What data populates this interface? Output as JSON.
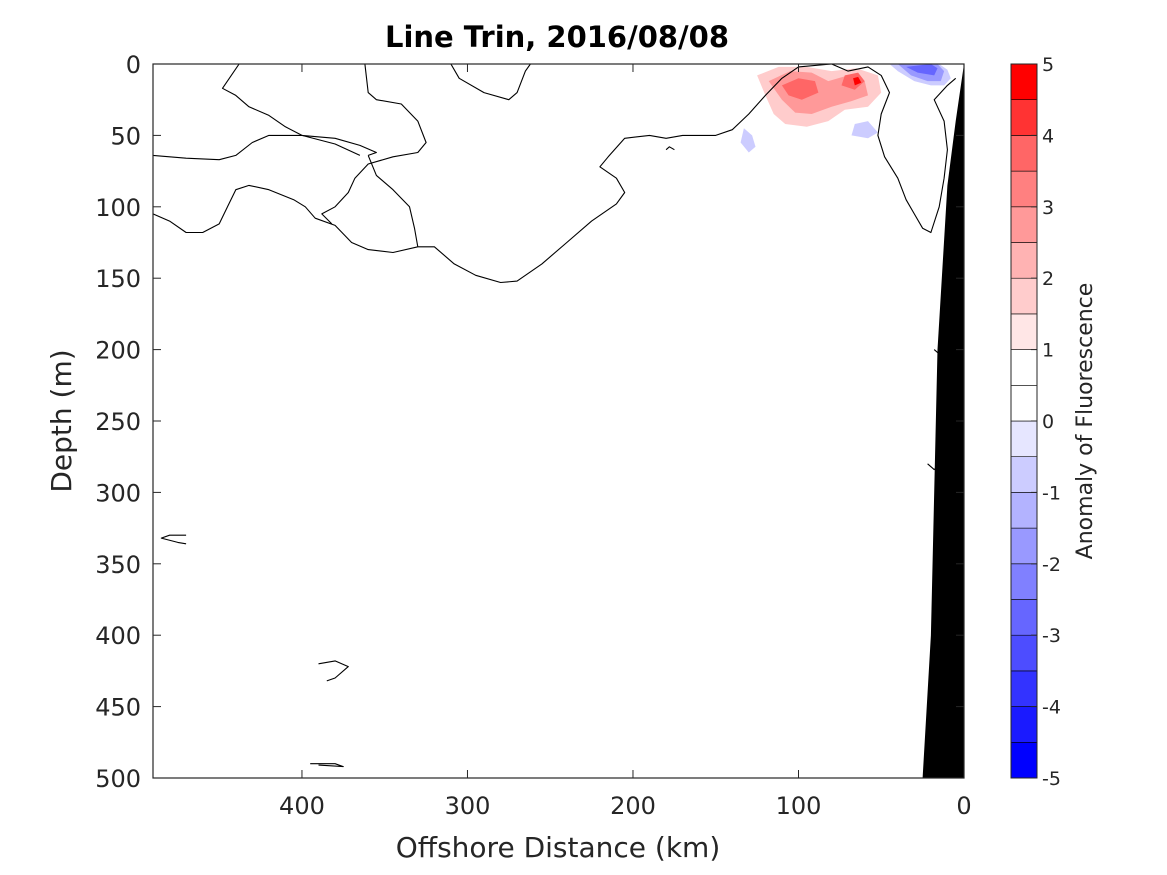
{
  "chart_data": {
    "type": "contour",
    "title": "Line Trin, 2016/08/08",
    "xlabel": "Offshore Distance (km)",
    "ylabel": "Depth (m)",
    "xlim": [
      490,
      0
    ],
    "ylim": [
      500,
      0
    ],
    "x_reversed": true,
    "y_reversed": true,
    "xticks": [
      400,
      300,
      200,
      100,
      0
    ],
    "yticks": [
      0,
      50,
      100,
      150,
      200,
      250,
      300,
      350,
      400,
      450,
      500
    ],
    "grid": false,
    "colorbar": {
      "label": "Anomaly of Fluorescence",
      "range": [
        -5,
        5
      ],
      "ticks": [
        -5,
        -4,
        -3,
        -2,
        -1,
        0,
        1,
        2,
        3,
        4,
        5
      ],
      "levels": [
        {
          "from": -5,
          "to": -4.5,
          "color": "#0000ff"
        },
        {
          "from": -4.5,
          "to": -4,
          "color": "#1a1aff"
        },
        {
          "from": -4,
          "to": -3.5,
          "color": "#3333ff"
        },
        {
          "from": -3.5,
          "to": -3,
          "color": "#4d4dff"
        },
        {
          "from": -3,
          "to": -2.5,
          "color": "#6666ff"
        },
        {
          "from": -2.5,
          "to": -2,
          "color": "#8080ff"
        },
        {
          "from": -2,
          "to": -1.5,
          "color": "#9999ff"
        },
        {
          "from": -1.5,
          "to": -1,
          "color": "#b3b3ff"
        },
        {
          "from": -1,
          "to": -0.5,
          "color": "#ccccff"
        },
        {
          "from": -0.5,
          "to": 0,
          "color": "#e6e6ff"
        },
        {
          "from": 0,
          "to": 0.5,
          "color": "#ffffff"
        },
        {
          "from": 0.5,
          "to": 1,
          "color": "#ffffff"
        },
        {
          "from": 1,
          "to": 1.5,
          "color": "#ffe6e6"
        },
        {
          "from": 1.5,
          "to": 2,
          "color": "#ffcccc"
        },
        {
          "from": 2,
          "to": 2.5,
          "color": "#ffb3b3"
        },
        {
          "from": 2.5,
          "to": 3,
          "color": "#ff9999"
        },
        {
          "from": 3,
          "to": 3.5,
          "color": "#ff8080"
        },
        {
          "from": 3.5,
          "to": 4,
          "color": "#ff6666"
        },
        {
          "from": 4,
          "to": 4.5,
          "color": "#ff3333"
        },
        {
          "from": 4.5,
          "to": 5,
          "color": "#ff0000"
        }
      ]
    },
    "contour_lines": [
      {
        "level": 0,
        "points": [
          [
            490,
            64
          ],
          [
            470,
            66
          ],
          [
            450,
            67
          ],
          [
            440,
            64
          ],
          [
            430,
            55
          ],
          [
            420,
            50
          ],
          [
            400,
            50
          ],
          [
            380,
            52
          ],
          [
            365,
            57
          ],
          [
            355,
            62
          ],
          [
            360,
            64
          ]
        ]
      },
      {
        "level": 0,
        "points": [
          [
            365,
            64
          ],
          [
            380,
            56
          ],
          [
            400,
            50
          ],
          [
            410,
            44
          ],
          [
            420,
            36
          ],
          [
            432,
            30
          ],
          [
            440,
            22
          ],
          [
            448,
            17
          ],
          [
            438,
            0
          ]
        ]
      },
      {
        "level": 0,
        "points": [
          [
            490,
            105
          ],
          [
            480,
            110
          ],
          [
            470,
            118
          ],
          [
            460,
            118
          ],
          [
            450,
            112
          ],
          [
            445,
            100
          ],
          [
            440,
            88
          ],
          [
            432,
            85
          ],
          [
            420,
            88
          ],
          [
            405,
            95
          ],
          [
            398,
            100
          ],
          [
            392,
            108
          ],
          [
            380,
            113
          ],
          [
            370,
            125
          ],
          [
            360,
            130
          ],
          [
            345,
            132
          ],
          [
            330,
            128
          ]
        ]
      },
      {
        "level": 0,
        "points": [
          [
            330,
            128
          ],
          [
            320,
            128
          ],
          [
            308,
            140
          ],
          [
            295,
            148
          ],
          [
            280,
            153
          ],
          [
            270,
            152
          ],
          [
            255,
            140
          ],
          [
            240,
            125
          ],
          [
            225,
            110
          ],
          [
            210,
            98
          ],
          [
            205,
            90
          ],
          [
            210,
            80
          ],
          [
            220,
            72
          ],
          [
            215,
            65
          ],
          [
            205,
            52
          ],
          [
            190,
            50
          ],
          [
            180,
            52
          ],
          [
            170,
            50
          ],
          [
            150,
            50
          ],
          [
            140,
            46
          ],
          [
            130,
            35
          ],
          [
            120,
            22
          ],
          [
            110,
            10
          ],
          [
            100,
            2
          ],
          [
            80,
            0
          ]
        ]
      },
      {
        "level": 0,
        "points": [
          [
            330,
            128
          ],
          [
            332,
            115
          ],
          [
            335,
            100
          ],
          [
            345,
            88
          ],
          [
            355,
            78
          ],
          [
            360,
            64
          ]
        ]
      },
      {
        "level": 0,
        "points": [
          [
            362,
            0
          ],
          [
            360,
            20
          ],
          [
            355,
            25
          ],
          [
            340,
            28
          ],
          [
            330,
            40
          ],
          [
            325,
            55
          ],
          [
            330,
            62
          ],
          [
            345,
            65
          ],
          [
            360,
            70
          ],
          [
            368,
            80
          ],
          [
            372,
            90
          ],
          [
            380,
            100
          ],
          [
            388,
            105
          ],
          [
            382,
            112
          ]
        ]
      },
      {
        "level": 0,
        "points": [
          [
            310,
            0
          ],
          [
            305,
            10
          ],
          [
            290,
            20
          ],
          [
            275,
            25
          ],
          [
            270,
            20
          ],
          [
            265,
            5
          ],
          [
            262,
            0
          ]
        ]
      },
      {
        "level": 0,
        "points": [
          [
            80,
            0
          ],
          [
            70,
            5
          ],
          [
            58,
            2
          ],
          [
            50,
            8
          ],
          [
            45,
            20
          ],
          [
            50,
            35
          ],
          [
            52,
            50
          ],
          [
            48,
            65
          ],
          [
            40,
            80
          ],
          [
            35,
            95
          ],
          [
            30,
            105
          ],
          [
            25,
            115
          ],
          [
            20,
            118
          ],
          [
            15,
            100
          ],
          [
            12,
            80
          ],
          [
            10,
            60
          ],
          [
            12,
            40
          ],
          [
            18,
            25
          ],
          [
            10,
            15
          ],
          [
            5,
            10
          ]
        ]
      },
      {
        "level": 0,
        "points": [
          [
            470,
            330
          ],
          [
            480,
            330
          ],
          [
            485,
            332
          ],
          [
            475,
            335
          ],
          [
            470,
            336
          ]
        ]
      },
      {
        "level": 0,
        "points": [
          [
            390,
            420
          ],
          [
            380,
            418
          ],
          [
            372,
            422
          ],
          [
            380,
            430
          ],
          [
            385,
            432
          ]
        ]
      },
      {
        "level": 0,
        "points": [
          [
            395,
            490
          ],
          [
            380,
            490
          ],
          [
            375,
            492
          ],
          [
            390,
            491
          ]
        ]
      },
      {
        "level": 0,
        "points": [
          [
            175,
            60
          ],
          [
            178,
            58
          ],
          [
            180,
            60
          ]
        ]
      },
      {
        "level": 0,
        "points": [
          [
            18,
            200
          ],
          [
            15,
            203
          ],
          [
            12,
            200
          ]
        ]
      },
      {
        "level": 0,
        "points": [
          [
            22,
            280
          ],
          [
            18,
            284
          ],
          [
            15,
            281
          ]
        ]
      }
    ],
    "filled_regions": [
      {
        "level": 1,
        "points": [
          [
            135,
            5
          ],
          [
            120,
            0
          ],
          [
            100,
            0
          ],
          [
            80,
            2
          ],
          [
            60,
            0
          ],
          [
            45,
            5
          ],
          [
            40,
            15
          ],
          [
            42,
            30
          ],
          [
            55,
            38
          ],
          [
            70,
            35
          ],
          [
            80,
            45
          ],
          [
            90,
            50
          ],
          [
            105,
            50
          ],
          [
            115,
            45
          ],
          [
            120,
            35
          ],
          [
            125,
            25
          ],
          [
            130,
            15
          ]
        ]
      },
      {
        "level": 2,
        "points": [
          [
            125,
            8
          ],
          [
            112,
            2
          ],
          [
            95,
            2
          ],
          [
            80,
            5
          ],
          [
            65,
            3
          ],
          [
            52,
            8
          ],
          [
            50,
            20
          ],
          [
            58,
            30
          ],
          [
            72,
            32
          ],
          [
            82,
            40
          ],
          [
            95,
            44
          ],
          [
            108,
            42
          ],
          [
            115,
            35
          ],
          [
            120,
            22
          ]
        ]
      },
      {
        "level": 3,
        "points": [
          [
            118,
            12
          ],
          [
            105,
            5
          ],
          [
            92,
            6
          ],
          [
            82,
            12
          ],
          [
            70,
            8
          ],
          [
            60,
            12
          ],
          [
            58,
            22
          ],
          [
            68,
            26
          ],
          [
            80,
            30
          ],
          [
            92,
            35
          ],
          [
            102,
            34
          ],
          [
            110,
            25
          ]
        ]
      },
      {
        "level": 4,
        "points": [
          [
            110,
            15
          ],
          [
            100,
            10
          ],
          [
            90,
            12
          ],
          [
            88,
            20
          ],
          [
            98,
            25
          ],
          [
            106,
            22
          ]
        ]
      },
      {
        "level": 4,
        "points": [
          [
            72,
            8
          ],
          [
            64,
            6
          ],
          [
            60,
            12
          ],
          [
            66,
            18
          ],
          [
            74,
            15
          ]
        ]
      },
      {
        "level": 5,
        "points": [
          [
            67,
            10
          ],
          [
            64,
            9
          ],
          [
            62,
            13
          ],
          [
            66,
            15
          ]
        ]
      },
      {
        "level": -1,
        "points": [
          [
            45,
            0
          ],
          [
            40,
            5
          ],
          [
            30,
            12
          ],
          [
            20,
            15
          ],
          [
            12,
            15
          ],
          [
            8,
            10
          ],
          [
            10,
            4
          ],
          [
            15,
            0
          ]
        ]
      },
      {
        "level": -2,
        "points": [
          [
            40,
            0
          ],
          [
            32,
            8
          ],
          [
            22,
            12
          ],
          [
            14,
            12
          ],
          [
            12,
            5
          ],
          [
            16,
            0
          ]
        ]
      },
      {
        "level": -3,
        "points": [
          [
            35,
            2
          ],
          [
            28,
            6
          ],
          [
            18,
            8
          ],
          [
            16,
            3
          ],
          [
            20,
            0
          ]
        ]
      },
      {
        "level": -1,
        "points": [
          [
            133,
            45
          ],
          [
            128,
            50
          ],
          [
            126,
            58
          ],
          [
            130,
            62
          ],
          [
            135,
            55
          ]
        ]
      },
      {
        "level": -1,
        "points": [
          [
            66,
            42
          ],
          [
            58,
            40
          ],
          [
            52,
            48
          ],
          [
            58,
            52
          ],
          [
            68,
            50
          ]
        ]
      },
      {
        "level": 1,
        "points": [
          [
            28,
            38
          ],
          [
            20,
            35
          ],
          [
            16,
            42
          ],
          [
            22,
            45
          ],
          [
            28,
            42
          ]
        ]
      },
      {
        "level": 1,
        "points": [
          [
            38,
            22
          ],
          [
            32,
            20
          ],
          [
            30,
            28
          ],
          [
            36,
            30
          ]
        ]
      }
    ],
    "bathymetry": [
      [
        0,
        0
      ],
      [
        0,
        500
      ],
      [
        25,
        500
      ],
      [
        20,
        400
      ],
      [
        16,
        200
      ],
      [
        10,
        85
      ],
      [
        5,
        40
      ],
      [
        0,
        0
      ]
    ],
    "bathymetry_color": "#000000"
  }
}
